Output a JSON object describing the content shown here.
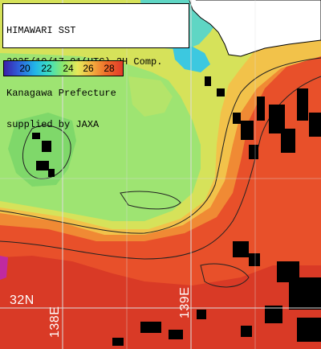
{
  "title": {
    "line1": "HIMAWARI SST",
    "line2": "2025/10/17 01(UTC) 3H Comp.",
    "line3": "Kanagawa Prefecture",
    "line4": "supplied by JAXA"
  },
  "legend": {
    "ticks": [
      "20",
      "22",
      "24",
      "26",
      "28"
    ],
    "colors": [
      "#3b1fa8",
      "#2f5ed8",
      "#22b4e8",
      "#3fe0c0",
      "#8ee86a",
      "#e6e85a",
      "#f2b040",
      "#ee6e2a",
      "#e23a2a"
    ]
  },
  "graticule": {
    "lat_label": "32N",
    "lon_labels": [
      "138E",
      "139E"
    ]
  },
  "colors": {
    "land": "#ffffff",
    "cloud": "#000000",
    "warm_water": "#e04a28",
    "cool_water": "#8ee070",
    "grid": "#dddddd"
  }
}
